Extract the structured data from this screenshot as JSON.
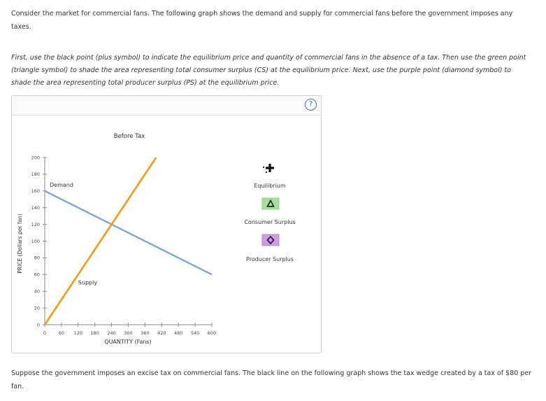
{
  "intro": "Consider the market for commercial fans. The following graph shows the demand and supply for commercial fans before the government imposes any taxes.",
  "instructions": "First, use the black point (plus symbol) to indicate the equilibrium price and quantity of commercial fans in the absence of a tax. Then use the green point (triangle symbol) to shade the area representing total consumer surplus (CS) at the equilibrium price. Next, use the purple point (diamond symbol) to shade the area representing total producer surplus (PS) at the equilibrium price.",
  "help_symbol": "?",
  "footer": "Suppose the government imposes an excise tax on commercial fans. The black line on the following graph shows the tax wedge created by a tax of $80 per fan.",
  "legend": {
    "equilibrium": "Equilibrium",
    "consumer_surplus": "Consumer Surplus",
    "producer_surplus": "Producer Surplus"
  },
  "colors": {
    "demand": "#7ea6d4",
    "supply": "#f59a16",
    "cs_fill": "#a6df9a",
    "ps_fill": "#cf9be3",
    "help": "#3a6fc4"
  },
  "chart_data": {
    "type": "line",
    "title": "Before Tax",
    "xlabel": "QUANTITY (Fans)",
    "ylabel": "PRICE (Dollars per fan)",
    "xlim": [
      0,
      600
    ],
    "ylim": [
      0,
      200
    ],
    "x_ticks": [
      0,
      60,
      120,
      180,
      240,
      300,
      360,
      420,
      480,
      540,
      600
    ],
    "y_ticks": [
      0,
      20,
      40,
      60,
      80,
      100,
      120,
      140,
      160,
      180,
      200
    ],
    "series": [
      {
        "name": "Demand",
        "points": [
          [
            0,
            160
          ],
          [
            600,
            60
          ]
        ]
      },
      {
        "name": "Supply",
        "points": [
          [
            0,
            0
          ],
          [
            400,
            200
          ]
        ]
      }
    ]
  }
}
